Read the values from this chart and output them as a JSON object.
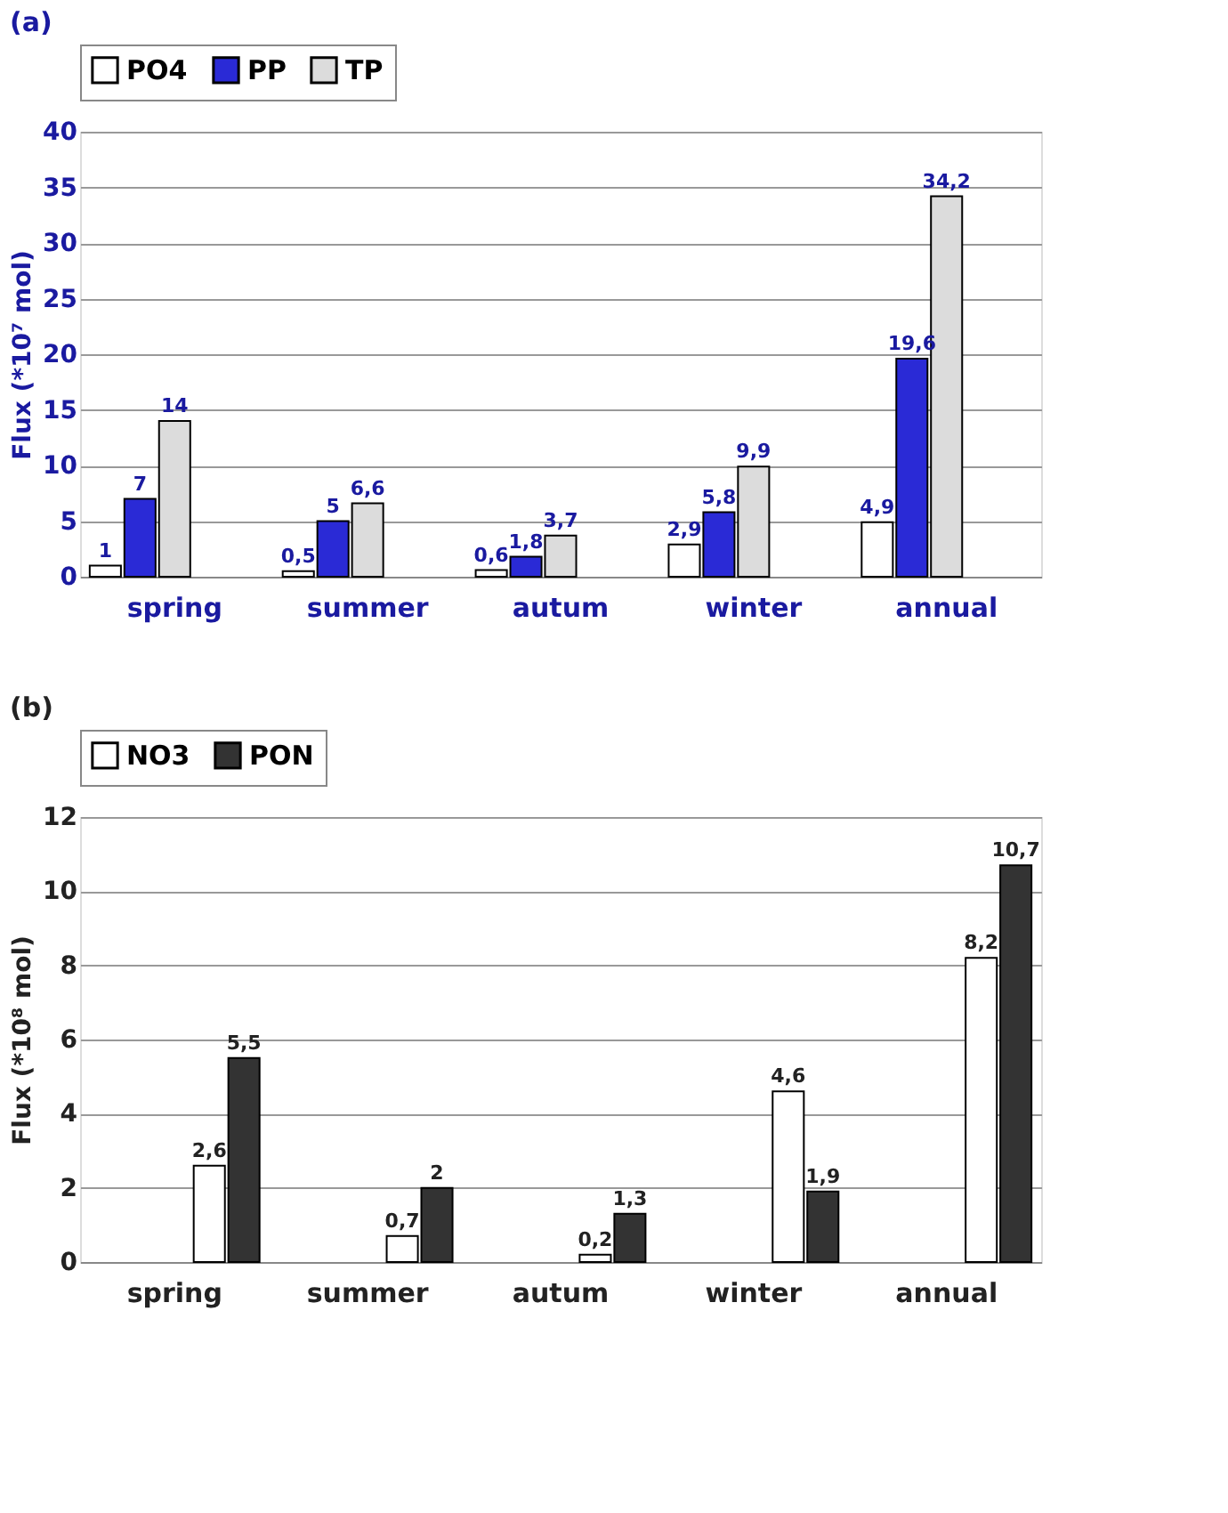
{
  "chart_data": [
    {
      "type": "bar",
      "title": "(a)",
      "ylabel": "Flux (*10⁷ mol)",
      "categories": [
        "spring",
        "summer",
        "autum",
        "winter",
        "annual"
      ],
      "series": [
        {
          "name": "PO4",
          "color": "#ffffff",
          "values": [
            1,
            0.5,
            0.6,
            2.9,
            4.9
          ],
          "value_labels": [
            "1",
            "0,5",
            "0,6",
            "2,9",
            "4,9"
          ]
        },
        {
          "name": "PP",
          "color": "#2a2ad6",
          "values": [
            7,
            5,
            1.8,
            5.8,
            19.6
          ],
          "value_labels": [
            "7",
            "5",
            "1,8",
            "5,8",
            "19,6"
          ]
        },
        {
          "name": "TP",
          "color": "#dcdcdc",
          "values": [
            14,
            6.6,
            3.7,
            9.9,
            34.2
          ],
          "value_labels": [
            "14",
            "6,6",
            "3,7",
            "9,9",
            "34,2"
          ]
        }
      ],
      "ylim": [
        0,
        40
      ],
      "yticks": [
        0,
        5,
        10,
        15,
        20,
        25,
        30,
        35,
        40
      ],
      "grid": "y",
      "legend": "top"
    },
    {
      "type": "bar",
      "title": "(b)",
      "ylabel": "Flux (*10⁸ mol)",
      "categories": [
        "spring",
        "summer",
        "autum",
        "winter",
        "annual"
      ],
      "series": [
        {
          "name": "NO3",
          "color": "#ffffff",
          "values": [
            2.6,
            0.7,
            0.2,
            4.6,
            8.2
          ],
          "value_labels": [
            "2,6",
            "0,7",
            "0,2",
            "4,6",
            "8,2"
          ]
        },
        {
          "name": "PON",
          "color": "#333333",
          "values": [
            5.5,
            2,
            1.3,
            1.9,
            10.7
          ],
          "value_labels": [
            "5,5",
            "2",
            "1,3",
            "1,9",
            "10,7"
          ]
        }
      ],
      "ylim": [
        0,
        12
      ],
      "yticks": [
        0,
        2,
        4,
        6,
        8,
        10,
        12
      ],
      "grid": "y",
      "legend": "top"
    }
  ]
}
